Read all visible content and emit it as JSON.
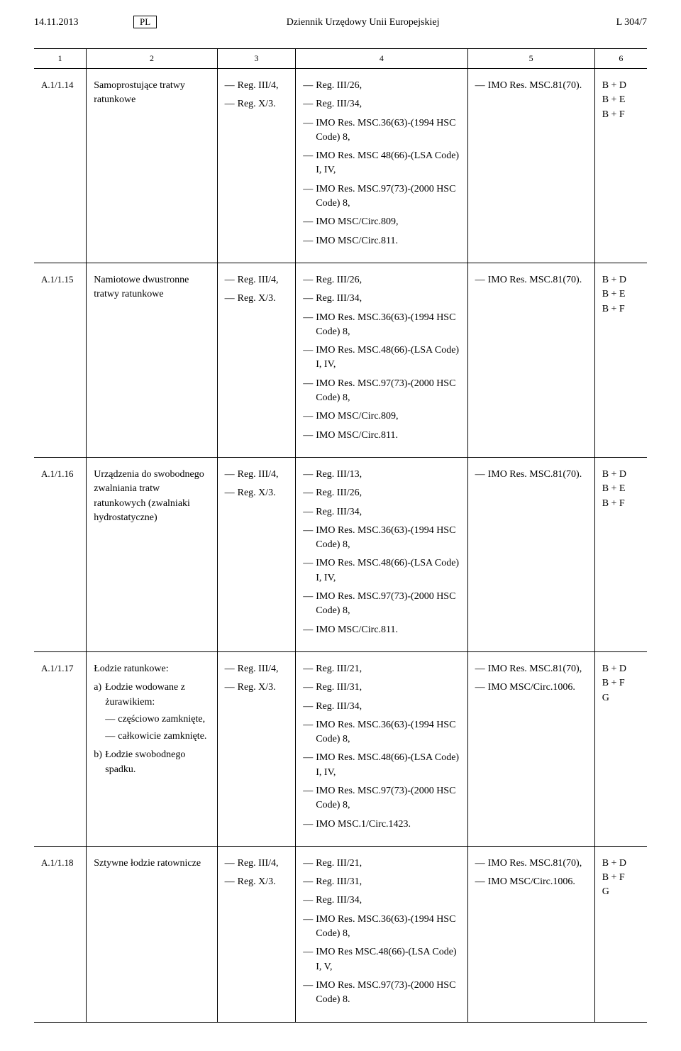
{
  "header": {
    "date": "14.11.2013",
    "lang": "PL",
    "title": "Dziennik Urzędowy Unii Europejskiej",
    "pagenum": "L 304/7"
  },
  "colheads": [
    "1",
    "2",
    "3",
    "4",
    "5",
    "6"
  ],
  "rows": [
    {
      "code": "A.1/1.14",
      "name": "Samoprostujące tratwy ratunkowe",
      "col3": [
        "Reg. III/4,",
        "Reg. X/3."
      ],
      "col4": [
        "Reg. III/26,",
        "Reg. III/34,",
        "IMO Res. MSC.36(63)-(1994 HSC Code) 8,",
        "IMO Res. MSC 48(66)-(LSA Code) I, IV,",
        "IMO Res. MSC.97(73)-(2000 HSC Code) 8,",
        "IMO MSC/Circ.809,",
        "IMO MSC/Circ.811."
      ],
      "col5": [
        "IMO Res. MSC.81(70)."
      ],
      "col6": [
        "B + D",
        "B + E",
        "B + F"
      ]
    },
    {
      "code": "A.1/1.15",
      "name": "Namiotowe dwustronne tratwy ratunkowe",
      "col3": [
        "Reg. III/4,",
        "Reg. X/3."
      ],
      "col4": [
        "Reg. III/26,",
        "Reg. III/34,",
        "IMO Res. MSC.36(63)-(1994 HSC Code) 8,",
        "IMO Res. MSC.48(66)-(LSA Code) I, IV,",
        "IMO Res. MSC.97(73)-(2000 HSC Code) 8,",
        "IMO MSC/Circ.809,",
        "IMO MSC/Circ.811."
      ],
      "col5": [
        "IMO Res. MSC.81(70)."
      ],
      "col6": [
        "B + D",
        "B + E",
        "B + F"
      ]
    },
    {
      "code": "A.1/1.16",
      "name": "Urządzenia do swobodnego zwalniania tratw ratunkowych (zwalniaki hydrostatyczne)",
      "col3": [
        "Reg. III/4,",
        "Reg. X/3."
      ],
      "col4": [
        "Reg. III/13,",
        "Reg. III/26,",
        "Reg. III/34,",
        "IMO Res. MSC.36(63)-(1994 HSC Code) 8,",
        "IMO Res. MSC.48(66)-(LSA Code) I, IV,",
        "IMO Res. MSC.97(73)-(2000 HSC Code) 8,",
        "IMO MSC/Circ.811."
      ],
      "col5": [
        "IMO Res. MSC.81(70)."
      ],
      "col6": [
        "B + D",
        "B + E",
        "B + F"
      ]
    },
    {
      "code": "A.1/1.17",
      "nested": {
        "title": "Łodzie ratunkowe:",
        "a_label": "a)",
        "a_text": "Łodzie wodowane z żurawikiem:",
        "a_items": [
          "częściowo zamknięte,",
          "całkowicie zamknięte."
        ],
        "b_label": "b)",
        "b_text": "Łodzie swobodnego spadku."
      },
      "col3": [
        "Reg. III/4,",
        "Reg. X/3."
      ],
      "col4": [
        "Reg. III/21,",
        "Reg. III/31,",
        "Reg. III/34,",
        "IMO Res. MSC.36(63)-(1994 HSC Code) 8,",
        "IMO Res. MSC.48(66)-(LSA Code) I, IV,",
        "IMO Res. MSC.97(73)-(2000 HSC Code) 8,",
        "IMO MSC.1/Circ.1423."
      ],
      "col5": [
        "IMO Res. MSC.81(70),",
        "IMO MSC/Circ.1006."
      ],
      "col6": [
        "B + D",
        "B + F",
        "G"
      ]
    },
    {
      "code": "A.1/1.18",
      "name": "Sztywne łodzie ratownicze",
      "col3": [
        "Reg. III/4,",
        "Reg. X/3."
      ],
      "col4": [
        "Reg. III/21,",
        "Reg. III/31,",
        "Reg. III/34,",
        "IMO Res. MSC.36(63)-(1994 HSC Code) 8,",
        "IMO Res MSC.48(66)-(LSA Code) I, V,",
        "IMO Res. MSC.97(73)-(2000 HSC Code) 8."
      ],
      "col5": [
        "IMO Res. MSC.81(70),",
        "IMO MSC/Circ.1006."
      ],
      "col6": [
        "B + D",
        "B + F",
        "G"
      ]
    }
  ]
}
